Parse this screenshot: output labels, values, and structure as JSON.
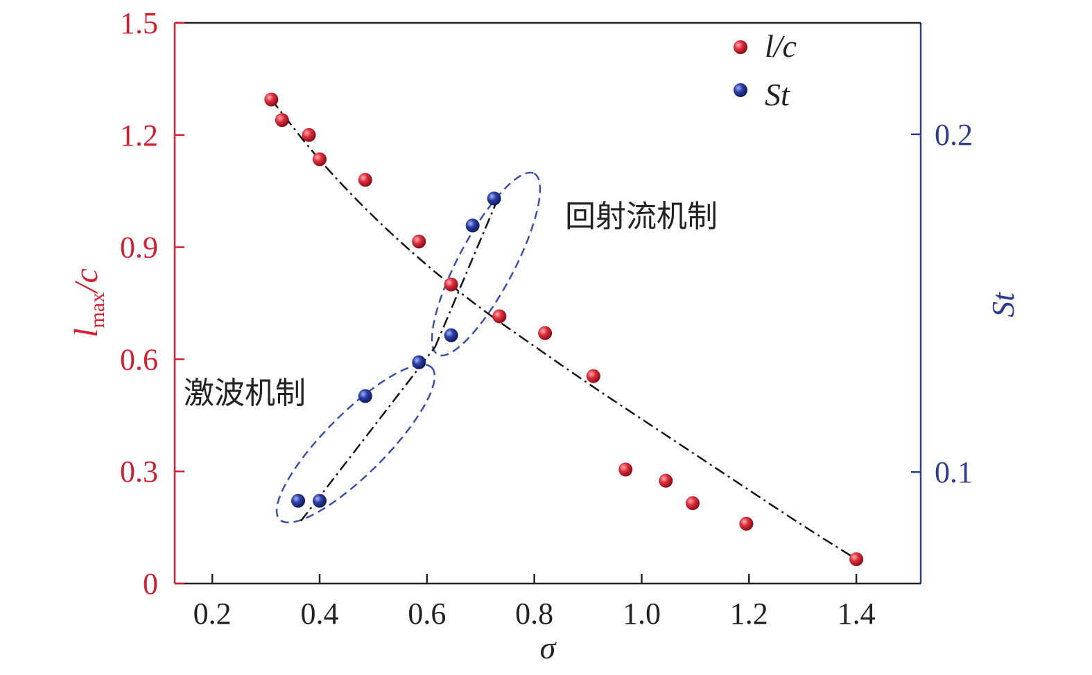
{
  "chart_data": {
    "type": "scatter",
    "title": "",
    "xlabel": "σ",
    "ylabel_left": {
      "main": "l",
      "sub": "max",
      "rest": "/c"
    },
    "ylabel_right": "St",
    "xlim": [
      0.13,
      1.52
    ],
    "ylim_left": [
      0,
      1.5
    ],
    "ylim_right": [
      0.067,
      0.233
    ],
    "x_ticks": [
      "0.2",
      "0.4",
      "0.6",
      "0.8",
      "1.0",
      "1.2",
      "1.4"
    ],
    "y_left_ticks": [
      "0",
      "0.3",
      "0.6",
      "0.9",
      "1.2",
      "1.5"
    ],
    "y_right_ticks": [
      "0.1",
      "0.2"
    ],
    "legend_position": "top-right",
    "series": [
      {
        "name": "l/c",
        "axis": "left",
        "color": "#d42030",
        "points": [
          [
            0.31,
            1.295
          ],
          [
            0.33,
            1.24
          ],
          [
            0.38,
            1.2
          ],
          [
            0.4,
            1.135
          ],
          [
            0.485,
            1.08
          ],
          [
            0.585,
            0.915
          ],
          [
            0.645,
            0.8
          ],
          [
            0.735,
            0.715
          ],
          [
            0.82,
            0.67
          ],
          [
            0.91,
            0.555
          ],
          [
            0.97,
            0.305
          ],
          [
            1.045,
            0.275
          ],
          [
            1.095,
            0.215
          ],
          [
            1.195,
            0.16
          ],
          [
            1.4,
            0.065
          ]
        ]
      },
      {
        "name": "St",
        "axis": "right",
        "color": "#2e3b8f",
        "points": [
          [
            0.36,
            0.0915
          ],
          [
            0.4,
            0.0915
          ],
          [
            0.485,
            0.1225
          ],
          [
            0.585,
            0.1325
          ],
          [
            0.645,
            0.1405
          ],
          [
            0.685,
            0.173
          ],
          [
            0.725,
            0.181
          ]
        ]
      }
    ],
    "fit_curves": [
      {
        "name": "l/c fit",
        "axis": "left",
        "color": "#111111",
        "style": "dash-dot",
        "points": [
          [
            0.31,
            1.295
          ],
          [
            0.4,
            1.13
          ],
          [
            0.5,
            0.98
          ],
          [
            0.6,
            0.85
          ],
          [
            0.7,
            0.735
          ],
          [
            0.8,
            0.635
          ],
          [
            0.9,
            0.535
          ],
          [
            1.0,
            0.44
          ],
          [
            1.1,
            0.345
          ],
          [
            1.2,
            0.25
          ],
          [
            1.3,
            0.155
          ],
          [
            1.4,
            0.065
          ]
        ]
      },
      {
        "name": "St fit low",
        "axis": "right",
        "color": "#111111",
        "style": "dash-dot",
        "points": [
          [
            0.365,
            0.0855
          ],
          [
            0.615,
            0.137
          ]
        ]
      },
      {
        "name": "St fit high",
        "axis": "right",
        "color": "#111111",
        "style": "dash-dot",
        "points": [
          [
            0.615,
            0.137
          ],
          [
            0.735,
            0.182
          ]
        ]
      }
    ],
    "annotations": [
      {
        "text": "激波机制",
        "position": "lower-left"
      },
      {
        "text": "回射流机制",
        "position": "upper-middle"
      }
    ]
  }
}
